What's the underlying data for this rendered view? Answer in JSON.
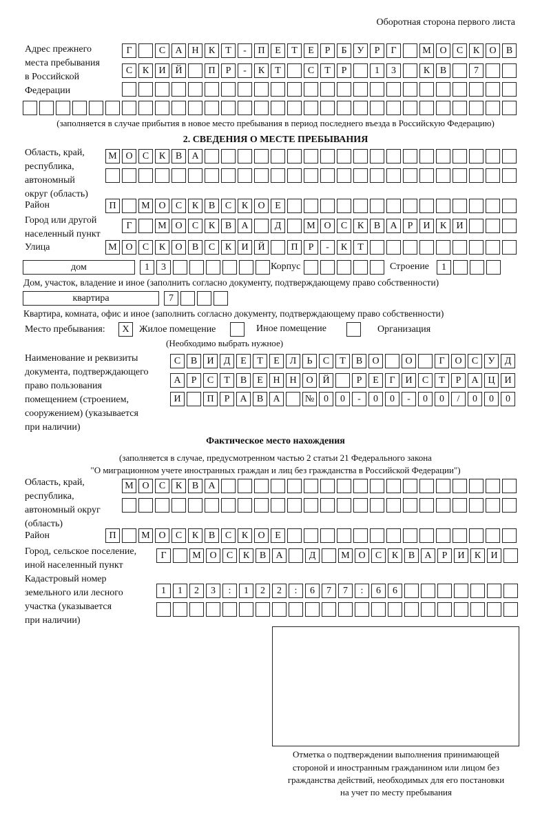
{
  "header": {
    "page_note": "Оборотная сторона первого листа"
  },
  "previous_address": {
    "label": "Адрес прежнего места пребывания в Российской Федерации",
    "label_lines": [
      "Адрес прежнего",
      "места пребывания",
      "в Российской",
      "Федерации"
    ],
    "rows": [
      [
        "Г",
        "",
        "С",
        "А",
        "Н",
        "К",
        "Т",
        "-",
        "П",
        "Е",
        "Т",
        "Е",
        "Р",
        "Б",
        "У",
        "Р",
        "Г",
        "",
        "М",
        "О",
        "С",
        "К",
        "О",
        "В"
      ],
      [
        "С",
        "К",
        "И",
        "Й",
        "",
        "П",
        "Р",
        "-",
        "К",
        "Т",
        "",
        "С",
        "Т",
        "Р",
        "",
        "1",
        "3",
        "",
        "К",
        "В",
        "",
        "7",
        "",
        ""
      ],
      [
        "",
        "",
        "",
        "",
        "",
        "",
        "",
        "",
        "",
        "",
        "",
        "",
        "",
        "",
        "",
        "",
        "",
        "",
        "",
        "",
        "",
        "",
        "",
        ""
      ],
      [
        "",
        "",
        "",
        "",
        "",
        "",
        "",
        "",
        "",
        "",
        "",
        "",
        "",
        "",
        "",
        "",
        "",
        "",
        "",
        "",
        "",
        "",
        "",
        "",
        "",
        "",
        "",
        "",
        "",
        ""
      ]
    ],
    "note": "(заполняется в случае прибытия в новое место пребывания в период последнего въезда в Российскую Федерацию)"
  },
  "section2": {
    "title": "2. СВЕДЕНИЯ О МЕСТЕ ПРЕБЫВАНИЯ",
    "region": {
      "label_lines": [
        "Область, край,",
        "республика,",
        "автономный",
        "округ (область)"
      ],
      "rows": [
        [
          "М",
          "О",
          "С",
          "К",
          "В",
          "А",
          "",
          "",
          "",
          "",
          "",
          "",
          "",
          "",
          "",
          "",
          "",
          "",
          "",
          "",
          "",
          "",
          "",
          "",
          ""
        ],
        [
          "",
          "",
          "",
          "",
          "",
          "",
          "",
          "",
          "",
          "",
          "",
          "",
          "",
          "",
          "",
          "",
          "",
          "",
          "",
          "",
          "",
          "",
          "",
          "",
          ""
        ]
      ]
    },
    "district": {
      "label": "Район",
      "row": [
        "П",
        "",
        "М",
        "О",
        "С",
        "К",
        "В",
        "С",
        "К",
        "О",
        "Е",
        "",
        "",
        "",
        "",
        "",
        "",
        "",
        "",
        "",
        "",
        "",
        "",
        "",
        ""
      ]
    },
    "city": {
      "label_lines": [
        "Город или другой",
        "населенный пункт"
      ],
      "row": [
        "Г",
        "",
        "М",
        "О",
        "С",
        "К",
        "В",
        "А",
        "",
        "Д",
        "",
        "М",
        "О",
        "С",
        "К",
        "В",
        "А",
        "Р",
        "И",
        "К",
        "И",
        "",
        "",
        ""
      ]
    },
    "street": {
      "label": "Улица",
      "row": [
        "М",
        "О",
        "С",
        "К",
        "О",
        "В",
        "С",
        "К",
        "И",
        "Й",
        "",
        "П",
        "Р",
        "-",
        "К",
        "Т",
        "",
        "",
        "",
        "",
        "",
        "",
        "",
        "",
        ""
      ]
    },
    "house": {
      "type_value": "дом",
      "number": [
        "1",
        "3",
        "",
        "",
        "",
        "",
        "",
        ""
      ],
      "building_label": "Корпус",
      "building": [
        "",
        "",
        "",
        "",
        ""
      ],
      "structure_label": "Строение",
      "structure": [
        "1",
        "",
        "",
        ""
      ],
      "note": "Дом, участок, владение и иное (заполнить согласно документу, подтверждающему право собственности)"
    },
    "apartment": {
      "type_value": "квартира",
      "number": [
        "7",
        "",
        "",
        ""
      ],
      "note": "Квартира, комната, офис и иное (заполнить согласно документу, подтверждающему право собственности)"
    },
    "place": {
      "label": "Место пребывания:",
      "options": [
        {
          "label": "Жилое помещение",
          "mark": "X",
          "checked": true
        },
        {
          "label": "Иное помещение",
          "mark": "",
          "checked": false
        },
        {
          "label": "Организация",
          "mark": "",
          "checked": false
        }
      ],
      "note": "(Необходимо выбрать нужное)"
    },
    "document": {
      "label_lines": [
        "Наименование и реквизиты",
        "документа, подтверждающего",
        "право пользования",
        "помещением (строением,",
        "сооружением) (указывается",
        "при наличии)"
      ],
      "rows": [
        [
          "С",
          "В",
          "И",
          "Д",
          "Е",
          "Т",
          "Е",
          "Л",
          "Ь",
          "С",
          "Т",
          "В",
          "О",
          "",
          "О",
          "",
          "Г",
          "О",
          "С",
          "У",
          "Д"
        ],
        [
          "А",
          "Р",
          "С",
          "Т",
          "В",
          "Е",
          "Н",
          "Н",
          "О",
          "Й",
          "",
          "Р",
          "Е",
          "Г",
          "И",
          "С",
          "Т",
          "Р",
          "А",
          "Ц",
          "И"
        ],
        [
          "И",
          "",
          "П",
          "Р",
          "А",
          "В",
          "А",
          "",
          "№",
          "0",
          "0",
          "-",
          "0",
          "0",
          "-",
          "0",
          "0",
          "/",
          "0",
          "0",
          "0"
        ]
      ]
    }
  },
  "actual": {
    "title": "Фактическое место нахождения",
    "note_lines": [
      "(заполняется в случае, предусмотренном частью 2 статьи 21 Федерального закона",
      "\"О миграционном учете иностранных граждан и лиц без гражданства в Российской Федерации\")"
    ],
    "region": {
      "label_lines": [
        "Область, край,",
        "республика,",
        "автономный округ",
        "(область)"
      ],
      "rows": [
        [
          "М",
          "О",
          "С",
          "К",
          "В",
          "А",
          "",
          "",
          "",
          "",
          "",
          "",
          "",
          "",
          "",
          "",
          "",
          "",
          "",
          "",
          "",
          "",
          "",
          ""
        ],
        [
          "",
          "",
          "",
          "",
          "",
          "",
          "",
          "",
          "",
          "",
          "",
          "",
          "",
          "",
          "",
          "",
          "",
          "",
          "",
          "",
          "",
          "",
          "",
          ""
        ]
      ]
    },
    "district": {
      "label": "Район",
      "row": [
        "П",
        "",
        "М",
        "О",
        "С",
        "К",
        "В",
        "С",
        "К",
        "О",
        "Е",
        "",
        "",
        "",
        "",
        "",
        "",
        "",
        "",
        "",
        "",
        "",
        "",
        "",
        ""
      ]
    },
    "city": {
      "label_lines": [
        "Город, сельское поселение,",
        "иной населенный пункт"
      ],
      "row": [
        "Г",
        "",
        "М",
        "О",
        "С",
        "К",
        "В",
        "А",
        "",
        "Д",
        "",
        "М",
        "О",
        "С",
        "К",
        "В",
        "А",
        "Р",
        "И",
        "К",
        "И",
        ""
      ]
    },
    "cadastral": {
      "label_lines": [
        "Кадастровый номер",
        "земельного или лесного",
        "участка (указывается",
        "при наличии)"
      ],
      "rows": [
        [
          "1",
          "1",
          "2",
          "3",
          ":",
          "1",
          "2",
          "2",
          ":",
          "6",
          "7",
          "7",
          ":",
          "6",
          "6",
          "",
          "",
          "",
          "",
          "",
          "",
          ""
        ],
        [
          "",
          "",
          "",
          "",
          "",
          "",
          "",
          "",
          "",
          "",
          "",
          "",
          "",
          "",
          "",
          "",
          "",
          "",
          "",
          "",
          "",
          ""
        ]
      ]
    }
  },
  "confirmation": {
    "caption_lines": [
      "Отметка о подтверждении выполнения принимающей",
      "стороной и иностранным гражданином или лицом без",
      "гражданства действий, необходимых для его постановки",
      "на учет по месту пребывания"
    ]
  }
}
